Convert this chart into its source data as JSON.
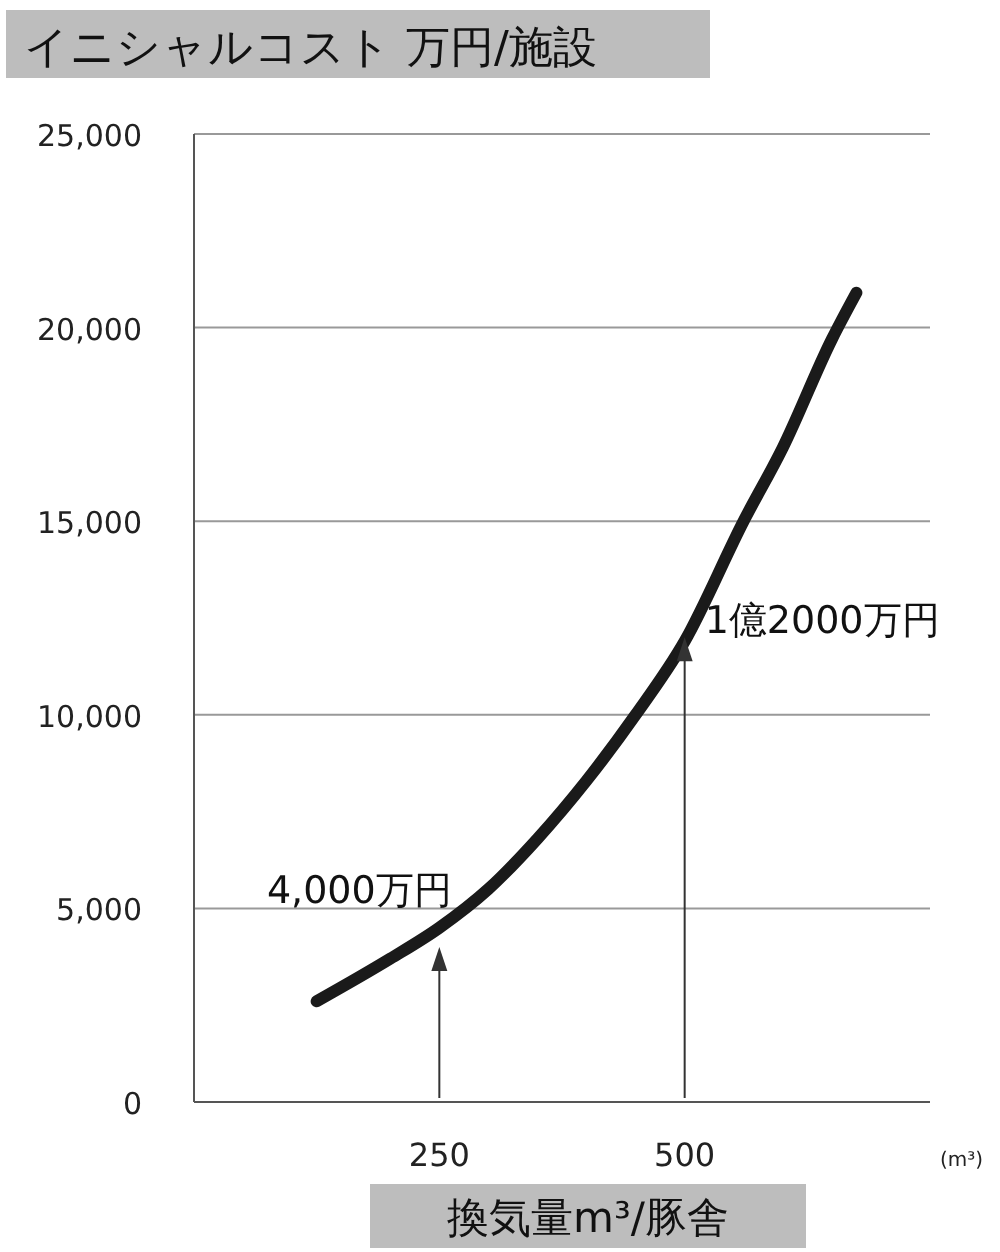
{
  "chart_data": {
    "type": "line",
    "title": "イニシャルコスト 万円/施設",
    "xlabel": "換気量m³/豚舎",
    "x": [
      125,
      200,
      250,
      300,
      350,
      400,
      450,
      500,
      560,
      600,
      650,
      675
    ],
    "series": [
      {
        "color": "#1a1a1a",
        "values": [
          2600,
          3700,
          4500,
          5500,
          6800,
          8300,
          10000,
          11900,
          15000,
          16900,
          19700,
          20900
        ]
      }
    ],
    "xlim": [
      0,
      750
    ],
    "xticks": [
      250,
      500
    ],
    "ylim": [
      0,
      25000
    ],
    "yticks": [
      0,
      {
        "value": 5000,
        "label": "5,000"
      },
      {
        "value": 10000,
        "label": "10,000"
      },
      {
        "value": 15000,
        "label": "15,000"
      },
      {
        "value": 20000,
        "label": "20,000"
      },
      {
        "value": 25000,
        "label": "25,000"
      }
    ],
    "grid": "y",
    "marker": "none",
    "line_style": "solid",
    "annotations": [
      {
        "text": "4,000万円",
        "x": 250,
        "y": 4000
      },
      {
        "text": "1億2000万円",
        "x": 500,
        "y": 12000
      },
      "(m³)"
    ]
  }
}
